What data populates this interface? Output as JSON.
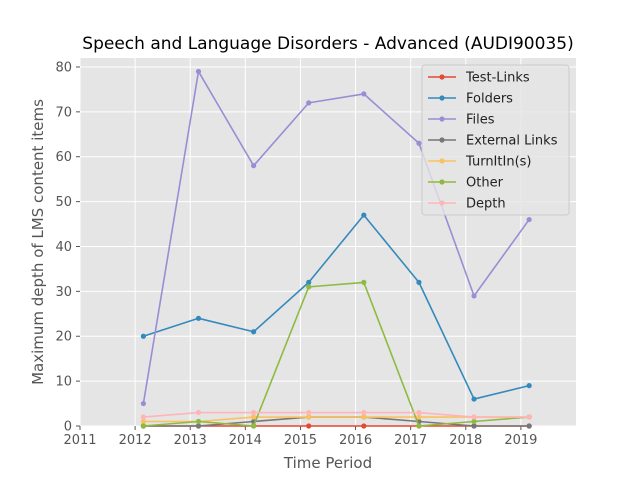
{
  "chart_data": {
    "type": "line",
    "title": "Speech and Language Disorders - Advanced (AUDI90035)",
    "xlabel": "Time Period",
    "ylabel": "Maximum depth of LMS content items",
    "xlim": [
      2011,
      2020
    ],
    "ylim": [
      0,
      82
    ],
    "x_ticks": [
      "2011",
      "2012",
      "2013",
      "2014",
      "2015",
      "2016",
      "2017",
      "2018",
      "2019"
    ],
    "y_ticks": [
      "0",
      "10",
      "20",
      "30",
      "40",
      "50",
      "60",
      "70",
      "80"
    ],
    "grid": true,
    "legend_position": "top-right",
    "x": [
      2012.15,
      2013.15,
      2014.15,
      2015.15,
      2016.15,
      2017.15,
      2018.15,
      2019.15
    ],
    "series": [
      {
        "name": "Test-Links",
        "color": "#e24a33",
        "values": [
          0,
          0,
          0,
          0,
          0,
          0,
          0,
          0
        ]
      },
      {
        "name": "Folders",
        "color": "#348abd",
        "values": [
          20,
          24,
          21,
          32,
          47,
          32,
          6,
          9
        ]
      },
      {
        "name": "Files",
        "color": "#988ed5",
        "values": [
          5,
          79,
          58,
          72,
          74,
          63,
          29,
          46
        ]
      },
      {
        "name": "External Links",
        "color": "#777777",
        "values": [
          0,
          0,
          1,
          2,
          2,
          1,
          0,
          0
        ]
      },
      {
        "name": "TurnItIn(s)",
        "color": "#fbc15e",
        "values": [
          1,
          1,
          2,
          2,
          2,
          2,
          2,
          2
        ]
      },
      {
        "name": "Other",
        "color": "#8eba42",
        "values": [
          0,
          1,
          0,
          31,
          32,
          0,
          1,
          2
        ]
      },
      {
        "name": "Depth",
        "color": "#ffb5b8",
        "values": [
          2,
          3,
          3,
          3,
          3,
          3,
          2,
          2
        ]
      }
    ]
  }
}
